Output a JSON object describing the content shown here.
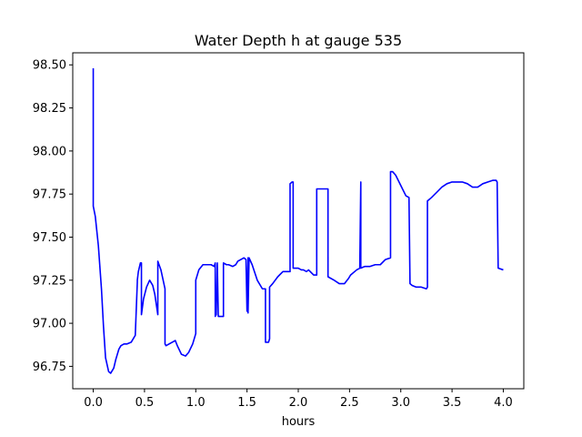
{
  "chart_data": {
    "type": "line",
    "title": "Water Depth h at gauge 535",
    "xlabel": "hours",
    "ylabel": "",
    "xlim": [
      -0.2,
      4.2
    ],
    "ylim": [
      96.62,
      98.57
    ],
    "xticks": [
      0.0,
      0.5,
      1.0,
      1.5,
      2.0,
      2.5,
      3.0,
      3.5,
      4.0
    ],
    "xtick_labels": [
      "0.0",
      "0.5",
      "1.0",
      "1.5",
      "2.0",
      "2.5",
      "3.0",
      "3.5",
      "4.0"
    ],
    "yticks": [
      96.75,
      97.0,
      97.25,
      97.5,
      97.75,
      98.0,
      98.25,
      98.5
    ],
    "ytick_labels": [
      "96.75",
      "97.00",
      "97.25",
      "97.50",
      "97.75",
      "98.00",
      "98.25",
      "98.50"
    ],
    "grid": false,
    "series": [
      {
        "color": "#0000ff",
        "x": [
          0.0,
          0.0,
          0.0,
          0.02,
          0.05,
          0.08,
          0.1,
          0.12,
          0.15,
          0.17,
          0.2,
          0.22,
          0.25,
          0.27,
          0.3,
          0.33,
          0.37,
          0.41,
          0.43,
          0.43,
          0.44,
          0.46,
          0.47,
          0.47,
          0.49,
          0.52,
          0.55,
          0.58,
          0.6,
          0.63,
          0.63,
          0.66,
          0.7,
          0.7,
          0.71,
          0.74,
          0.77,
          0.8,
          0.82,
          0.86,
          0.9,
          0.93,
          0.97,
          1.0,
          1.0,
          1.03,
          1.07,
          1.1,
          1.15,
          1.18,
          1.19,
          1.19,
          1.2,
          1.21,
          1.22,
          1.22,
          1.24,
          1.27,
          1.27,
          1.3,
          1.32,
          1.36,
          1.39,
          1.41,
          1.44,
          1.47,
          1.49,
          1.5,
          1.51,
          1.51,
          1.52,
          1.55,
          1.6,
          1.65,
          1.68,
          1.68,
          1.71,
          1.72,
          1.72,
          1.75,
          1.8,
          1.85,
          1.9,
          1.92,
          1.92,
          1.94,
          1.95,
          1.95,
          2.0,
          2.03,
          2.05,
          2.08,
          2.1,
          2.15,
          2.18,
          2.18,
          2.21,
          2.25,
          2.29,
          2.29,
          2.35,
          2.4,
          2.45,
          2.49,
          2.51,
          2.55,
          2.57,
          2.6,
          2.61,
          2.61,
          2.65,
          2.7,
          2.75,
          2.8,
          2.85,
          2.9,
          2.9,
          2.92,
          2.95,
          3.0,
          3.05,
          3.08,
          3.09,
          3.11,
          3.15,
          3.2,
          3.25,
          3.26,
          3.26,
          3.3,
          3.35,
          3.4,
          3.45,
          3.5,
          3.55,
          3.6,
          3.65,
          3.7,
          3.75,
          3.8,
          3.85,
          3.9,
          3.93,
          3.94,
          3.95,
          4.0
        ],
        "y": [
          98.48,
          97.85,
          97.68,
          97.62,
          97.45,
          97.2,
          96.98,
          96.8,
          96.72,
          96.71,
          96.74,
          96.79,
          96.85,
          96.87,
          96.88,
          96.88,
          96.89,
          96.93,
          97.24,
          97.25,
          97.3,
          97.35,
          97.35,
          97.05,
          97.14,
          97.21,
          97.25,
          97.22,
          97.17,
          97.05,
          97.36,
          97.31,
          97.2,
          96.88,
          96.87,
          96.88,
          96.89,
          96.9,
          96.87,
          96.82,
          96.81,
          96.83,
          96.88,
          96.94,
          97.25,
          97.31,
          97.34,
          97.34,
          97.34,
          97.33,
          97.35,
          97.04,
          97.05,
          97.35,
          97.04,
          97.04,
          97.04,
          97.04,
          97.35,
          97.34,
          97.34,
          97.33,
          97.34,
          97.36,
          97.37,
          97.38,
          97.37,
          97.07,
          97.38,
          97.06,
          97.38,
          97.34,
          97.25,
          97.2,
          97.2,
          96.89,
          96.89,
          96.91,
          97.21,
          97.23,
          97.27,
          97.3,
          97.3,
          97.3,
          97.81,
          97.82,
          97.82,
          97.32,
          97.32,
          97.31,
          97.31,
          97.3,
          97.31,
          97.28,
          97.28,
          97.78,
          97.78,
          97.78,
          97.78,
          97.27,
          97.25,
          97.23,
          97.23,
          97.26,
          97.28,
          97.3,
          97.31,
          97.32,
          97.82,
          97.32,
          97.33,
          97.33,
          97.34,
          97.34,
          97.37,
          97.38,
          97.88,
          97.88,
          97.86,
          97.8,
          97.74,
          97.73,
          97.23,
          97.22,
          97.21,
          97.21,
          97.2,
          97.21,
          97.71,
          97.73,
          97.76,
          97.79,
          97.81,
          97.82,
          97.82,
          97.82,
          97.81,
          97.79,
          97.79,
          97.81,
          97.82,
          97.83,
          97.83,
          97.82,
          97.32,
          97.31
        ]
      }
    ]
  }
}
